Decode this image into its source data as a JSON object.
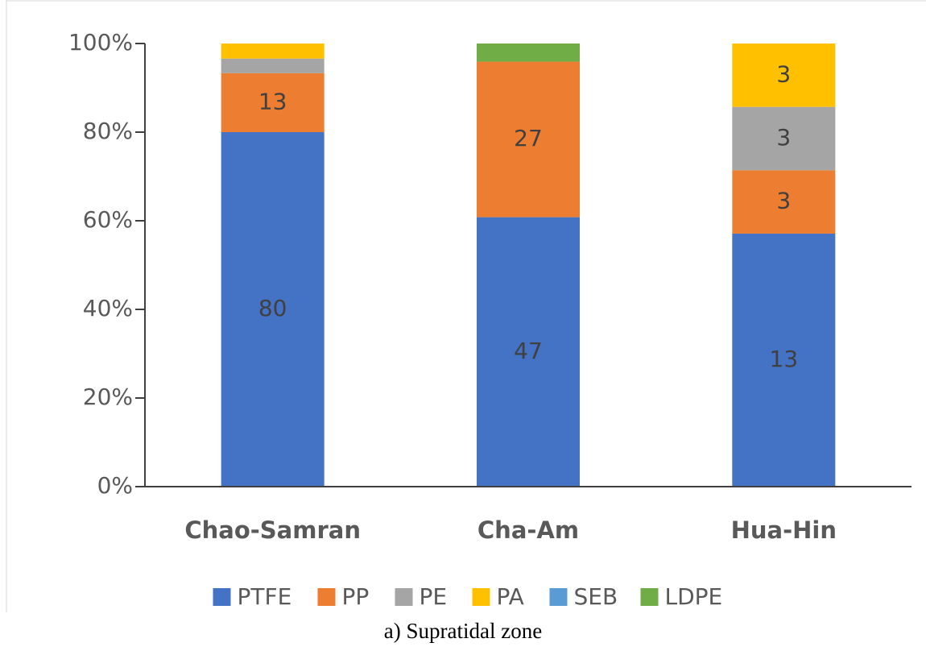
{
  "chart_data": {
    "type": "stacked_bar_percent",
    "caption": "a) Supratidal zone",
    "categories": [
      "Chao-Samran",
      "Cha-Am",
      "Hua-Hin"
    ],
    "series": [
      {
        "name": "PTFE",
        "color": "#4472c4",
        "values": [
          80,
          60.8,
          57.1
        ],
        "labels": [
          "80",
          "47",
          "13"
        ]
      },
      {
        "name": "PP",
        "color": "#ed7d31",
        "values": [
          13.3,
          35.1,
          14.3
        ],
        "labels": [
          "13",
          "27",
          "3"
        ]
      },
      {
        "name": "PE",
        "color": "#a5a5a5",
        "values": [
          3.3,
          0,
          14.3
        ],
        "labels": [
          null,
          null,
          "3"
        ]
      },
      {
        "name": "PA",
        "color": "#ffc000",
        "values": [
          3.4,
          0,
          14.3
        ],
        "labels": [
          null,
          null,
          "3"
        ]
      },
      {
        "name": "SEB",
        "color": "#5b9bd5",
        "values": [
          0,
          0,
          0
        ],
        "labels": [
          null,
          null,
          null
        ]
      },
      {
        "name": "LDPE",
        "color": "#70ad47",
        "values": [
          0,
          4.1,
          0
        ],
        "labels": [
          null,
          null,
          null
        ]
      }
    ],
    "ylim": [
      0,
      100
    ],
    "yticks": [
      {
        "value": 0,
        "label": "0%"
      },
      {
        "value": 20,
        "label": "20%"
      },
      {
        "value": 40,
        "label": "40%"
      },
      {
        "value": 60,
        "label": "60%"
      },
      {
        "value": 80,
        "label": "80%"
      },
      {
        "value": 100,
        "label": "100%"
      }
    ],
    "legend": "bottom"
  }
}
